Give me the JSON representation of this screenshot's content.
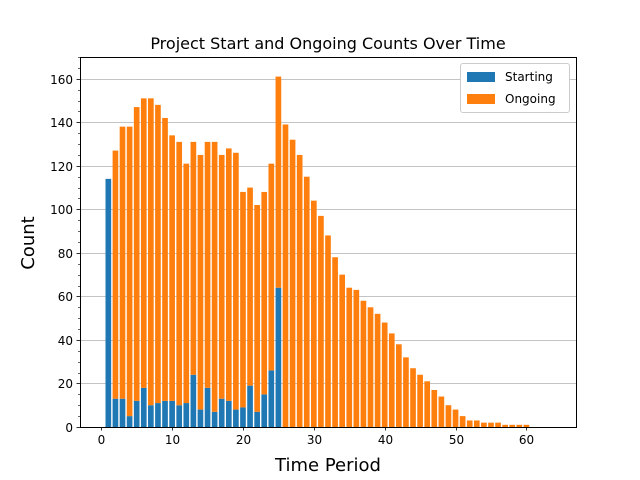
{
  "chart_data": {
    "type": "bar",
    "stacked": true,
    "title": "Project Start and Ongoing Counts Over Time",
    "xlabel": "Time Period",
    "ylabel": "Count",
    "xlim": [
      -3,
      67
    ],
    "ylim": [
      0,
      170
    ],
    "xticks": [
      0,
      10,
      20,
      30,
      40,
      50,
      60
    ],
    "yticks": [
      0,
      20,
      40,
      60,
      80,
      100,
      120,
      140,
      160
    ],
    "grid": "y",
    "legend_position": "top-right",
    "x": [
      1,
      2,
      3,
      4,
      5,
      6,
      7,
      8,
      9,
      10,
      11,
      12,
      13,
      14,
      15,
      16,
      17,
      18,
      19,
      20,
      21,
      22,
      23,
      24,
      25,
      26,
      27,
      28,
      29,
      30,
      31,
      32,
      33,
      34,
      35,
      36,
      37,
      38,
      39,
      40,
      41,
      42,
      43,
      44,
      45,
      46,
      47,
      48,
      49,
      50,
      51,
      52,
      53,
      54,
      55,
      56,
      57,
      58,
      59,
      60
    ],
    "series": [
      {
        "name": "Starting",
        "color": "#1f77b4",
        "values": [
          114,
          13,
          13,
          5,
          12,
          18,
          10,
          11,
          12,
          12,
          10,
          11,
          24,
          8,
          18,
          7,
          13,
          12,
          8,
          9,
          19,
          7,
          15,
          26,
          64,
          0,
          0,
          0,
          0,
          0,
          0,
          0,
          0,
          0,
          0,
          0,
          0,
          0,
          0,
          0,
          0,
          0,
          0,
          0,
          0,
          0,
          0,
          0,
          0,
          0,
          0,
          0,
          0,
          0,
          0,
          0,
          0,
          0,
          0,
          0
        ]
      },
      {
        "name": "Ongoing",
        "color": "#ff7f0e",
        "values": [
          0,
          114,
          125,
          133,
          135,
          133,
          141,
          137,
          130,
          122,
          121,
          110,
          107,
          117,
          113,
          124,
          112,
          116,
          118,
          99,
          91,
          95,
          93,
          95,
          97,
          139,
          132,
          125,
          115,
          104,
          97,
          88,
          78,
          70,
          64,
          63,
          58,
          55,
          52,
          48,
          43,
          38,
          32,
          27,
          24,
          21,
          17,
          14,
          10,
          8,
          5,
          3,
          3,
          2,
          2,
          2,
          1,
          1,
          1,
          1
        ]
      }
    ]
  }
}
